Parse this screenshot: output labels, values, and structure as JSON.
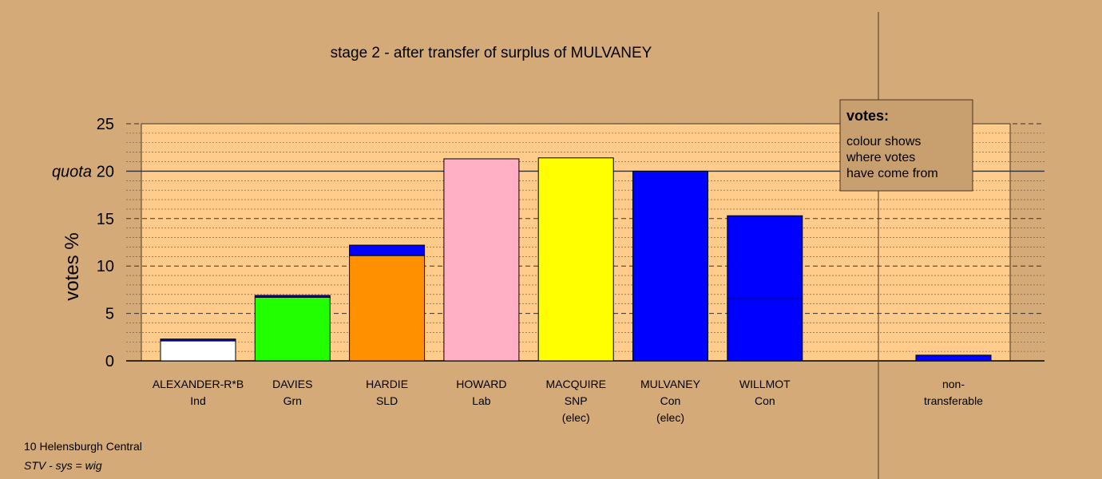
{
  "chart_data": {
    "type": "bar",
    "stacked": true,
    "title": "stage 2 - after transfer of surplus of MULVANEY",
    "ylabel": "votes %",
    "ylim": [
      0,
      25
    ],
    "yticks": [
      0,
      5,
      10,
      15,
      20,
      25
    ],
    "quota": 20,
    "quota_label": "quota",
    "grid": true,
    "categories": [
      {
        "name": "ALEXANDER-R*B",
        "party": "Ind",
        "status": ""
      },
      {
        "name": "DAVIES",
        "party": "Grn",
        "status": ""
      },
      {
        "name": "HARDIE",
        "party": "SLD",
        "status": ""
      },
      {
        "name": "HOWARD",
        "party": "Lab",
        "status": ""
      },
      {
        "name": "MACQUIRE",
        "party": "SNP",
        "status": "(elec)"
      },
      {
        "name": "MULVANEY",
        "party": "Con",
        "status": "(elec)"
      },
      {
        "name": "WILLMOT",
        "party": "Con",
        "status": ""
      }
    ],
    "bars": [
      {
        "segments": [
          {
            "value": 2.1,
            "color": "#ffffff"
          },
          {
            "value": 0.2,
            "color": "#0000ff"
          }
        ]
      },
      {
        "segments": [
          {
            "value": 6.7,
            "color": "#22ff00"
          },
          {
            "value": 0.2,
            "color": "#0000ff"
          }
        ]
      },
      {
        "segments": [
          {
            "value": 11.1,
            "color": "#ff9000"
          },
          {
            "value": 1.1,
            "color": "#0000ff"
          }
        ]
      },
      {
        "segments": [
          {
            "value": 21.3,
            "color": "#ffb0c4"
          }
        ]
      },
      {
        "segments": [
          {
            "value": 21.4,
            "color": "#ffff00"
          }
        ]
      },
      {
        "segments": [
          {
            "value": 20.0,
            "color": "#0000ff"
          }
        ]
      },
      {
        "segments": [
          {
            "value": 6.6,
            "color": "#0000ff"
          },
          {
            "value": 8.7,
            "color": "#0000ff"
          }
        ]
      }
    ],
    "nontransferable": {
      "label_line1": "non-",
      "label_line2": "transferable",
      "value": 0.6,
      "color": "#0000ff"
    },
    "legend": {
      "title": "votes:",
      "lines": [
        "colour shows",
        "where votes",
        "have come from"
      ],
      "position": "top-right"
    },
    "colors": {
      "background": "#d4aa78",
      "plot_area": "#ffcc8c",
      "legend_bg": "#c8a070"
    }
  },
  "footer": {
    "line1": "10 Helensburgh Central",
    "line2": "STV - sys = wig"
  }
}
